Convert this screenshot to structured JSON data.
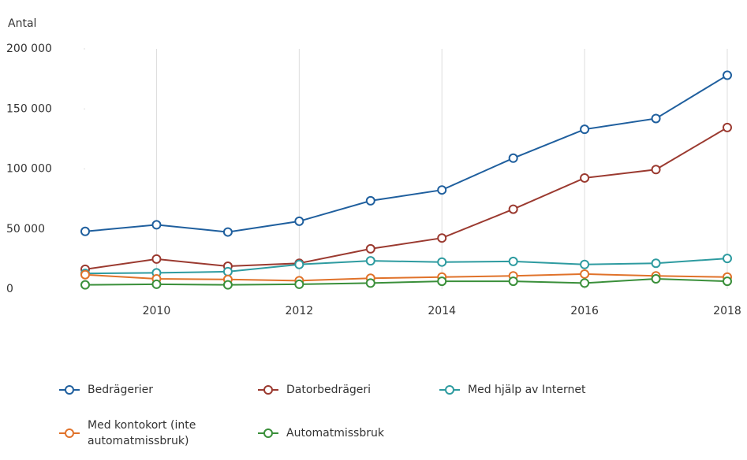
{
  "chart_data": {
    "type": "line",
    "y_axis_label": "Antal",
    "x": [
      2009,
      2010,
      2011,
      2012,
      2013,
      2014,
      2015,
      2016,
      2017,
      2018
    ],
    "xlim": [
      2009,
      2018
    ],
    "xticks": [
      2010,
      2012,
      2014,
      2016,
      2018
    ],
    "ylim": [
      0,
      200000
    ],
    "yticks": [
      {
        "value": 0,
        "label": "0"
      },
      {
        "value": 50000,
        "label": "50 000"
      },
      {
        "value": 100000,
        "label": "100 000"
      },
      {
        "value": 150000,
        "label": "150 000"
      },
      {
        "value": 200000,
        "label": "200 000"
      }
    ],
    "grid": "x",
    "legend": "bottom",
    "series": [
      {
        "name": "Bedrägerier",
        "color": "#1f5f9e",
        "values": [
          48000,
          53500,
          47500,
          56500,
          73500,
          82500,
          109000,
          133000,
          142000,
          178000
        ]
      },
      {
        "name": "Datorbedrägeri",
        "color": "#9b3a30",
        "values": [
          16500,
          25000,
          19000,
          21500,
          33500,
          42500,
          66500,
          92500,
          99500,
          134500
        ]
      },
      {
        "name": "Med hjälp av Internet",
        "color": "#2e9ba0",
        "values": [
          13000,
          13500,
          14500,
          20500,
          23500,
          22500,
          23000,
          20500,
          21500,
          25500
        ]
      },
      {
        "name": "Med kontokort (inte automatmissbruk)",
        "color": "#e0722a",
        "values": [
          12000,
          8500,
          8000,
          7000,
          9000,
          10000,
          11000,
          12500,
          11000,
          10000
        ]
      },
      {
        "name": "Automatmissbruk",
        "color": "#3a8f3a",
        "values": [
          3500,
          4000,
          3500,
          4000,
          5000,
          6500,
          6500,
          5000,
          8500,
          6500
        ]
      }
    ]
  }
}
